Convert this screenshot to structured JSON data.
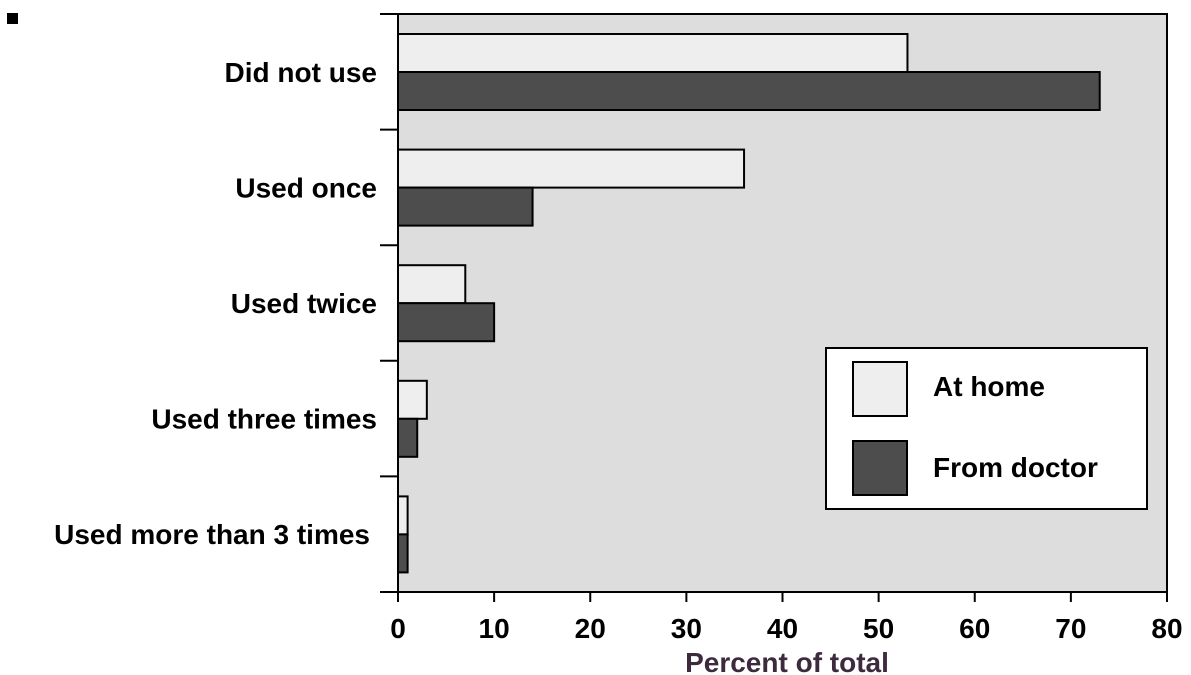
{
  "chart_data": {
    "type": "bar",
    "orientation": "horizontal",
    "categories": [
      "Did not use",
      "Used once",
      "Used twice",
      "Used three times",
      "Used more than 3 times"
    ],
    "series": [
      {
        "name": "At home",
        "values": [
          53,
          36,
          7,
          3,
          1
        ],
        "color": "#eeeeee"
      },
      {
        "name": "From doctor",
        "values": [
          73,
          14,
          10,
          2,
          1
        ],
        "color": "#4d4d4d"
      }
    ],
    "xlabel": "Percent of total",
    "xlim": [
      0,
      80
    ],
    "xticks": [
      0,
      10,
      20,
      30,
      40,
      50,
      60,
      70,
      80
    ],
    "legend": {
      "position": "lower-right"
    },
    "grid": false,
    "colors": {
      "plot_background": "#dddddd",
      "axis_title": "#3d2b3d",
      "bar_outline": "#000000"
    }
  }
}
